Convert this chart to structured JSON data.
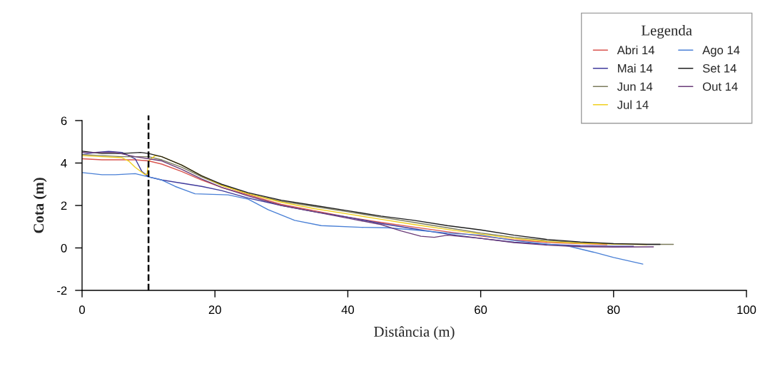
{
  "chart_data": {
    "type": "line",
    "xlabel": "Distância (m)",
    "ylabel": "Cota (m)",
    "legend_title": "Legenda",
    "legend": "top right",
    "xlim": [
      0,
      100
    ],
    "xticks": [
      0,
      20,
      40,
      60,
      80,
      100
    ],
    "ylim": [
      -2,
      6
    ],
    "yticks": [
      {
        "value": -2,
        "label": "-2"
      },
      0,
      2,
      4,
      6
    ],
    "ref_lines": [
      {
        "axis": "x",
        "value": 10,
        "color": "#000000",
        "line_style": "dashed"
      }
    ],
    "series": [
      {
        "name": "Abri 14",
        "color": "#d9544f",
        "x": [
          0,
          3,
          6,
          8,
          10,
          12,
          15,
          18,
          21,
          25,
          30,
          35,
          40,
          45,
          50,
          55,
          60,
          65,
          70,
          75,
          79
        ],
        "values": [
          4.2,
          4.15,
          4.15,
          4.15,
          4.1,
          3.95,
          3.6,
          3.2,
          2.85,
          2.5,
          2.05,
          1.75,
          1.45,
          1.2,
          0.98,
          0.76,
          0.56,
          0.38,
          0.26,
          0.2,
          0.16
        ]
      },
      {
        "name": "Mai 14",
        "color": "#3f3a9c",
        "x": [
          0,
          2,
          4,
          6,
          8,
          9,
          10,
          12,
          15,
          18,
          21,
          25,
          30,
          35,
          40,
          45,
          50,
          55,
          60,
          65,
          70,
          75,
          80,
          83
        ],
        "values": [
          4.4,
          4.5,
          4.55,
          4.5,
          4.2,
          3.6,
          3.35,
          3.2,
          3.05,
          2.9,
          2.7,
          2.35,
          2.0,
          1.7,
          1.45,
          1.15,
          0.9,
          0.65,
          0.45,
          0.27,
          0.17,
          0.1,
          0.08,
          0.08
        ]
      },
      {
        "name": "Jun 14",
        "color": "#7b7b5c",
        "x": [
          0,
          3,
          6,
          8,
          10,
          12,
          15,
          18,
          21,
          25,
          30,
          35,
          40,
          45,
          50,
          55,
          60,
          65,
          70,
          75,
          80,
          85,
          89
        ],
        "values": [
          4.4,
          4.35,
          4.3,
          4.3,
          4.3,
          4.15,
          3.8,
          3.35,
          2.95,
          2.55,
          2.2,
          1.95,
          1.7,
          1.45,
          1.2,
          0.95,
          0.7,
          0.5,
          0.35,
          0.25,
          0.18,
          0.17,
          0.17
        ]
      },
      {
        "name": "Jul 14",
        "color": "#f0cf1e",
        "x": [
          0,
          3,
          6,
          7,
          8,
          9.5,
          9.8,
          10,
          11,
          12,
          15,
          18,
          21,
          25,
          30,
          35,
          40,
          45,
          50,
          55,
          60,
          65,
          70,
          75,
          80,
          85
        ],
        "values": [
          4.35,
          4.3,
          4.25,
          4.1,
          3.8,
          3.45,
          3.5,
          4.1,
          4.35,
          4.3,
          3.9,
          3.4,
          2.95,
          2.55,
          2.15,
          1.85,
          1.6,
          1.35,
          1.1,
          0.87,
          0.65,
          0.45,
          0.3,
          0.22,
          0.18,
          0.16
        ]
      },
      {
        "name": "Ago 14",
        "color": "#4a80d6",
        "x": [
          0,
          3,
          5,
          8,
          10,
          12,
          14,
          17,
          22,
          25,
          28,
          32,
          36,
          42,
          46,
          50,
          55,
          60,
          65,
          70,
          73,
          77,
          80,
          84.4
        ],
        "values": [
          3.55,
          3.45,
          3.45,
          3.5,
          3.35,
          3.2,
          2.9,
          2.55,
          2.5,
          2.3,
          1.8,
          1.3,
          1.05,
          0.97,
          0.95,
          0.85,
          0.7,
          0.6,
          0.35,
          0.18,
          0.1,
          -0.2,
          -0.45,
          -0.76
        ]
      },
      {
        "name": "Set 14",
        "color": "#1e1e1e",
        "x": [
          0,
          3,
          6,
          8.8,
          10,
          12,
          15,
          18,
          21,
          25,
          30,
          35,
          40,
          45,
          50,
          55,
          60,
          65,
          70,
          75,
          80,
          85,
          87
        ],
        "values": [
          4.56,
          4.45,
          4.45,
          4.5,
          4.45,
          4.3,
          3.9,
          3.4,
          3.0,
          2.6,
          2.25,
          2.0,
          1.75,
          1.5,
          1.3,
          1.05,
          0.85,
          0.6,
          0.4,
          0.28,
          0.2,
          0.17,
          0.17
        ]
      },
      {
        "name": "Out 14",
        "color": "#6a3b78",
        "x": [
          0,
          3,
          5,
          8,
          10,
          12,
          15,
          18,
          21,
          25,
          30,
          35,
          40,
          45,
          48,
          51,
          53,
          55,
          60,
          65,
          70,
          75,
          80,
          86
        ],
        "values": [
          4.5,
          4.5,
          4.5,
          4.3,
          4.2,
          4.1,
          3.7,
          3.25,
          2.85,
          2.45,
          2.0,
          1.7,
          1.4,
          1.1,
          0.8,
          0.55,
          0.5,
          0.6,
          0.45,
          0.25,
          0.13,
          0.06,
          0.04,
          0.05
        ]
      }
    ]
  }
}
